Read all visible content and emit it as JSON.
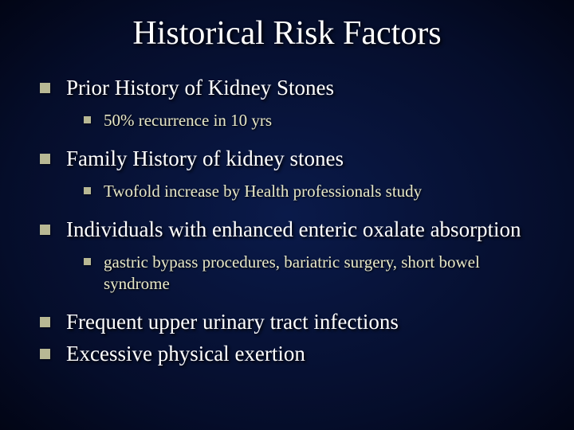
{
  "slide": {
    "title": "Historical Risk Factors",
    "title_fontsize": 42,
    "title_color": "#ffffff",
    "body_color": "#ffffff",
    "sub_color": "#e8e8c8",
    "bullet_color": "#b8b894",
    "background": "radial-gradient(ellipse at center, #0a1a4a 0%, #050d2a 70%, #020515 100%)",
    "items": [
      {
        "text": "Prior History of Kidney Stones",
        "sub": [
          {
            "text": "50% recurrence in 10 yrs"
          }
        ]
      },
      {
        "text": "Family History of kidney stones",
        "sub": [
          {
            "text": "Twofold increase by Health professionals study"
          }
        ]
      },
      {
        "text": "Individuals with enhanced enteric oxalate absorption",
        "sub": [
          {
            "text": "gastric bypass procedures, bariatric surgery, short bowel syndrome"
          }
        ]
      },
      {
        "text": "Frequent upper urinary tract infections",
        "sub": []
      },
      {
        "text": "Excessive physical exertion",
        "sub": []
      }
    ]
  }
}
